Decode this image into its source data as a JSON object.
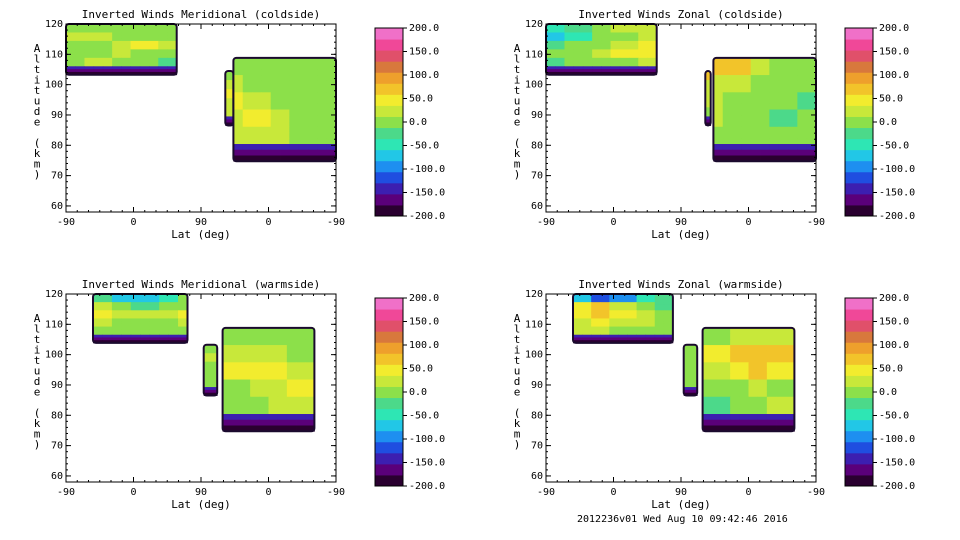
{
  "footer": "2012236v01 Wed Aug 10 09:42:46 2016",
  "colormap": [
    "#2a0030",
    "#5a007a",
    "#3c1fb0",
    "#1f4ee0",
    "#1e8ff0",
    "#22c7e6",
    "#2ee6b4",
    "#4cd98a",
    "#8ce04a",
    "#c8e83a",
    "#f2ec2e",
    "#f2c42a",
    "#eea02c",
    "#d8783c",
    "#e0506a",
    "#f04898",
    "#f070c8"
  ],
  "chart_data": [
    {
      "type": "heatmap",
      "title": "Inverted Winds Meridional (coldside)",
      "xlabel": "Lat (deg)",
      "ylabel": "Altitude (km)",
      "x_ticks": [
        "-90",
        "0",
        "90",
        "0",
        "-90"
      ],
      "y_ticks": [
        "60",
        "70",
        "80",
        "90",
        "100",
        "110",
        "120"
      ],
      "ylim": [
        58,
        120
      ],
      "colorbar": {
        "ticks": [
          "200.0",
          "150.0",
          "100.0",
          "50.0",
          "0.0",
          "-50.0",
          "-100.0",
          "-150.0",
          "-200.0"
        ],
        "range": [
          -200,
          200
        ]
      },
      "z": [
        [
          10,
          5,
          0,
          5,
          10,
          15,
          10,
          5,
          0,
          -5,
          -10,
          -5
        ],
        [
          20,
          30,
          10,
          0,
          5,
          10,
          15,
          20,
          10,
          0,
          -5,
          0
        ],
        [
          -10,
          10,
          30,
          40,
          20,
          10,
          30,
          40,
          30,
          10,
          0,
          -5
        ],
        [
          -5,
          0,
          20,
          10,
          -5,
          0,
          20,
          30,
          40,
          20,
          5,
          0
        ],
        [
          0,
          15,
          5,
          -10,
          -15,
          -5,
          5,
          20,
          30,
          25,
          10,
          5
        ],
        [
          5,
          10,
          0,
          -10,
          -20,
          -10,
          0,
          10,
          20,
          15,
          10,
          0
        ]
      ]
    },
    {
      "type": "heatmap",
      "title": "Inverted Winds Zonal (coldside)",
      "xlabel": "Lat (deg)",
      "ylabel": "Altitude (km)",
      "x_ticks": [
        "-90",
        "0",
        "90",
        "0",
        "-90"
      ],
      "y_ticks": [
        "60",
        "70",
        "80",
        "90",
        "100",
        "110",
        "120"
      ],
      "ylim": [
        58,
        120
      ],
      "colorbar": {
        "ticks": [
          "200.0",
          "150.0",
          "100.0",
          "50.0",
          "0.0",
          "-50.0",
          "-100.0",
          "-150.0",
          "-200.0"
        ],
        "range": [
          -200,
          200
        ]
      },
      "z": [
        [
          -40,
          -20,
          0,
          20,
          30,
          40,
          60,
          80,
          60,
          30,
          10,
          0
        ],
        [
          -60,
          -40,
          -10,
          10,
          30,
          50,
          40,
          30,
          20,
          10,
          0,
          -10
        ],
        [
          -30,
          -10,
          10,
          30,
          50,
          60,
          40,
          20,
          10,
          0,
          -10,
          -20
        ],
        [
          -10,
          0,
          20,
          40,
          50,
          40,
          30,
          20,
          10,
          0,
          -20,
          -10
        ],
        [
          -20,
          -10,
          0,
          10,
          20,
          30,
          20,
          10,
          0,
          -10,
          -10,
          0
        ],
        [
          -30,
          -20,
          -10,
          0,
          10,
          10,
          0,
          -10,
          -10,
          -20,
          -10,
          0
        ]
      ]
    },
    {
      "type": "heatmap",
      "title": "Inverted Winds Meridional (warmside)",
      "xlabel": "Lat (deg)",
      "ylabel": "Altitude (km)",
      "x_ticks": [
        "-90",
        "0",
        "90",
        "0",
        "-90"
      ],
      "y_ticks": [
        "60",
        "70",
        "80",
        "90",
        "100",
        "110",
        "120"
      ],
      "ylim": [
        58,
        120
      ],
      "colorbar": {
        "ticks": [
          "200.0",
          "150.0",
          "100.0",
          "50.0",
          "0.0",
          "-50.0",
          "-100.0",
          "-150.0",
          "-200.0"
        ],
        "range": [
          -200,
          200
        ]
      },
      "z": [
        [
          0,
          -20,
          -60,
          -80,
          -40,
          -10,
          0,
          10,
          10,
          0,
          -10,
          -20
        ],
        [
          40,
          20,
          -10,
          -30,
          -10,
          10,
          20,
          30,
          30,
          20,
          10,
          0
        ],
        [
          50,
          40,
          30,
          20,
          30,
          40,
          10,
          40,
          50,
          40,
          30,
          10
        ],
        [
          30,
          20,
          10,
          0,
          10,
          20,
          0,
          10,
          20,
          30,
          40,
          20
        ],
        [
          10,
          0,
          -10,
          -10,
          0,
          10,
          -5,
          0,
          10,
          20,
          30,
          10
        ],
        [
          0,
          -10,
          -20,
          -20,
          -10,
          0,
          -10,
          -10,
          0,
          10,
          10,
          0
        ]
      ]
    },
    {
      "type": "heatmap",
      "title": "Inverted Winds Zonal (warmside)",
      "xlabel": "Lat (deg)",
      "ylabel": "Altitude (km)",
      "x_ticks": [
        "-90",
        "0",
        "90",
        "0",
        "-90"
      ],
      "y_ticks": [
        "60",
        "70",
        "80",
        "90",
        "100",
        "110",
        "120"
      ],
      "ylim": [
        58,
        120
      ],
      "colorbar": {
        "ticks": [
          "200.0",
          "150.0",
          "100.0",
          "50.0",
          "0.0",
          "-50.0",
          "-100.0",
          "-150.0",
          "-200.0"
        ],
        "range": [
          -200,
          200
        ]
      },
      "z": [
        [
          -60,
          -80,
          -120,
          -90,
          -50,
          -20,
          0,
          10,
          20,
          30,
          20,
          10
        ],
        [
          20,
          40,
          60,
          30,
          0,
          -20,
          -10,
          40,
          70,
          80,
          60,
          30
        ],
        [
          30,
          50,
          60,
          50,
          30,
          10,
          0,
          30,
          50,
          60,
          40,
          20
        ],
        [
          20,
          30,
          40,
          30,
          20,
          10,
          0,
          0,
          10,
          20,
          10,
          0
        ],
        [
          10,
          20,
          20,
          10,
          0,
          -10,
          -10,
          -20,
          -10,
          0,
          20,
          40
        ],
        [
          0,
          10,
          10,
          0,
          -10,
          -20,
          -20,
          -30,
          -20,
          -10,
          10,
          30
        ]
      ]
    }
  ]
}
